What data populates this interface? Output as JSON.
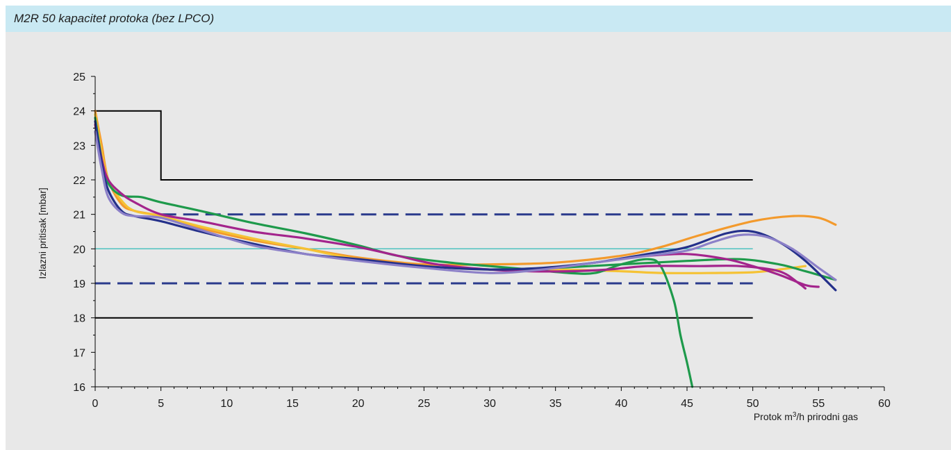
{
  "title": "M2R 50 kapacitet protoka (bez LPCO)",
  "chart_data": {
    "type": "line",
    "title": "M2R 50 kapacitet protoka (bez LPCO)",
    "xlabel_parts": {
      "prefix": "Protok m",
      "sup": "3",
      "suffix": "/h prirodni gas"
    },
    "ylabel": "Izlazni pritisak [mbar]",
    "xlim": [
      0,
      60
    ],
    "ylim": [
      16,
      25
    ],
    "xticks": [
      0,
      5,
      10,
      15,
      20,
      25,
      30,
      35,
      40,
      45,
      50,
      55,
      60
    ],
    "yticks": [
      16,
      17,
      18,
      19,
      20,
      21,
      22,
      23,
      24,
      25
    ],
    "grid": false,
    "reference_lines": [
      {
        "style": "solid-black",
        "color": "#000000",
        "points": [
          [
            0,
            24
          ],
          [
            5,
            24
          ],
          [
            5,
            22
          ],
          [
            50,
            22
          ]
        ]
      },
      {
        "style": "solid-black",
        "color": "#000000",
        "points": [
          [
            0,
            18
          ],
          [
            50,
            18
          ]
        ]
      },
      {
        "style": "dashed-navy",
        "color": "#2a3a8c",
        "points": [
          [
            5,
            21
          ],
          [
            50,
            21
          ]
        ]
      },
      {
        "style": "dashed-navy",
        "color": "#2a3a8c",
        "points": [
          [
            0,
            19
          ],
          [
            50,
            19
          ]
        ]
      },
      {
        "style": "solid-teal",
        "color": "#4ec2c0",
        "points": [
          [
            0,
            20
          ],
          [
            50,
            20
          ]
        ]
      }
    ],
    "series": [
      {
        "color": "#f39a2c",
        "points": [
          [
            0,
            24.0
          ],
          [
            0.5,
            23.0
          ],
          [
            1,
            22.0
          ],
          [
            2,
            21.3
          ],
          [
            3,
            21.1
          ],
          [
            5,
            20.95
          ],
          [
            8,
            20.6
          ],
          [
            12,
            20.25
          ],
          [
            16,
            20.0
          ],
          [
            20,
            19.75
          ],
          [
            25,
            19.55
          ],
          [
            30,
            19.55
          ],
          [
            35,
            19.6
          ],
          [
            40,
            19.8
          ],
          [
            43,
            20.05
          ],
          [
            46,
            20.4
          ],
          [
            50,
            20.8
          ],
          [
            53,
            20.95
          ],
          [
            55,
            20.9
          ],
          [
            56.3,
            20.7
          ]
        ]
      },
      {
        "color": "#f5c234",
        "points": [
          [
            0,
            23.9
          ],
          [
            0.5,
            22.8
          ],
          [
            1,
            22.0
          ],
          [
            2,
            21.4
          ],
          [
            3,
            21.1
          ],
          [
            5,
            20.95
          ],
          [
            8,
            20.65
          ],
          [
            12,
            20.3
          ],
          [
            16,
            20.0
          ],
          [
            20,
            19.7
          ],
          [
            25,
            19.5
          ],
          [
            30,
            19.4
          ],
          [
            35,
            19.4
          ],
          [
            40,
            19.35
          ],
          [
            43,
            19.3
          ],
          [
            47,
            19.3
          ],
          [
            50,
            19.32
          ],
          [
            52,
            19.4
          ],
          [
            54,
            19.5
          ]
        ]
      },
      {
        "color": "#1e9a4b",
        "points": [
          [
            0,
            23.8
          ],
          [
            0.5,
            22.6
          ],
          [
            1,
            21.9
          ],
          [
            2,
            21.55
          ],
          [
            3.5,
            21.5
          ],
          [
            5,
            21.35
          ],
          [
            8,
            21.1
          ],
          [
            12,
            20.75
          ],
          [
            16,
            20.45
          ],
          [
            20,
            20.1
          ],
          [
            23,
            19.8
          ],
          [
            27,
            19.6
          ],
          [
            30,
            19.5
          ],
          [
            33,
            19.4
          ],
          [
            36,
            19.3
          ],
          [
            38,
            19.3
          ],
          [
            40,
            19.55
          ],
          [
            42,
            19.7
          ],
          [
            43,
            19.5
          ],
          [
            44,
            18.5
          ],
          [
            44.5,
            17.5
          ],
          [
            45,
            16.7
          ],
          [
            45.4,
            16.0
          ]
        ]
      },
      {
        "color": "#1e9a4b",
        "points": [
          [
            30,
            19.4
          ],
          [
            35,
            19.45
          ],
          [
            40,
            19.55
          ],
          [
            45,
            19.65
          ],
          [
            49,
            19.7
          ],
          [
            52,
            19.55
          ],
          [
            54,
            19.35
          ],
          [
            56.3,
            19.1
          ]
        ]
      },
      {
        "color": "#a3248c",
        "points": [
          [
            0,
            23.6
          ],
          [
            0.5,
            22.6
          ],
          [
            1,
            22.0
          ],
          [
            2,
            21.6
          ],
          [
            3,
            21.35
          ],
          [
            5,
            21.0
          ],
          [
            8,
            20.8
          ],
          [
            12,
            20.5
          ],
          [
            16,
            20.3
          ],
          [
            20,
            20.05
          ],
          [
            23,
            19.8
          ],
          [
            26,
            19.55
          ],
          [
            30,
            19.4
          ],
          [
            33,
            19.35
          ],
          [
            36,
            19.35
          ],
          [
            39,
            19.4
          ],
          [
            42,
            19.5
          ],
          [
            46,
            19.5
          ],
          [
            49,
            19.5
          ],
          [
            52,
            19.35
          ],
          [
            53.5,
            19.0
          ],
          [
            54,
            18.85
          ]
        ]
      },
      {
        "color": "#a3248c",
        "points": [
          [
            42,
            19.8
          ],
          [
            45,
            19.85
          ],
          [
            48,
            19.7
          ],
          [
            50,
            19.5
          ],
          [
            52,
            19.25
          ],
          [
            54,
            18.95
          ],
          [
            55,
            18.9
          ]
        ]
      },
      {
        "color": "#24308a",
        "points": [
          [
            0,
            23.7
          ],
          [
            0.5,
            22.5
          ],
          [
            1,
            21.7
          ],
          [
            2,
            21.1
          ],
          [
            3,
            20.95
          ],
          [
            5,
            20.8
          ],
          [
            8,
            20.5
          ],
          [
            12,
            20.15
          ],
          [
            16,
            19.85
          ],
          [
            20,
            19.7
          ],
          [
            25,
            19.5
          ],
          [
            30,
            19.4
          ],
          [
            34,
            19.45
          ],
          [
            38,
            19.6
          ],
          [
            42,
            19.85
          ],
          [
            45,
            20.05
          ],
          [
            48,
            20.45
          ],
          [
            50,
            20.5
          ],
          [
            52,
            20.2
          ],
          [
            54,
            19.65
          ],
          [
            56.3,
            18.8
          ]
        ]
      },
      {
        "color": "#8c80c8",
        "points": [
          [
            0,
            23.4
          ],
          [
            0.5,
            22.3
          ],
          [
            1,
            21.5
          ],
          [
            2,
            21.05
          ],
          [
            3,
            20.95
          ],
          [
            5,
            20.9
          ],
          [
            8,
            20.55
          ],
          [
            12,
            20.1
          ],
          [
            16,
            19.85
          ],
          [
            20,
            19.65
          ],
          [
            25,
            19.45
          ],
          [
            30,
            19.3
          ],
          [
            34,
            19.4
          ],
          [
            38,
            19.6
          ],
          [
            42,
            19.8
          ],
          [
            45,
            19.95
          ],
          [
            47,
            20.2
          ],
          [
            49,
            20.4
          ],
          [
            51,
            20.35
          ],
          [
            53,
            20.0
          ],
          [
            55,
            19.45
          ],
          [
            56.3,
            19.1
          ]
        ]
      }
    ]
  }
}
